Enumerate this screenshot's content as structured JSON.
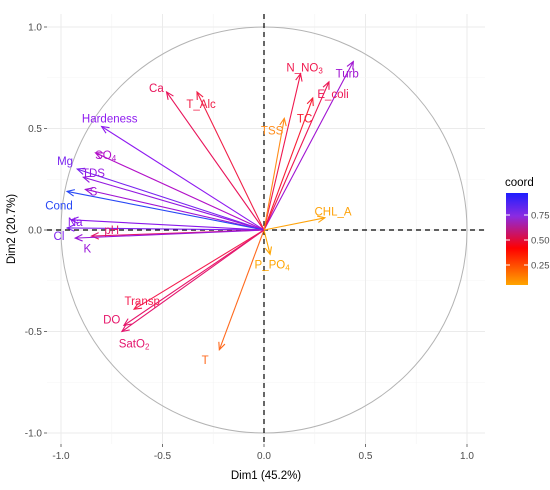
{
  "chart_data": {
    "type": "pca-correlation-circle",
    "xlabel": "Dim1 (45.2%)",
    "ylabel": "Dim2 (20.7%)",
    "xlim": [
      -1.05,
      1.05
    ],
    "ylim": [
      -1.05,
      1.05
    ],
    "x_ticks": [
      "-1.0",
      "-0.5",
      "0.0",
      "0.5",
      "1.0"
    ],
    "y_ticks": [
      "-1.0",
      "-0.5",
      "0.0",
      "0.5",
      "1.0"
    ],
    "grid": true,
    "unit_circle": true,
    "legend": {
      "title": "coord",
      "placement": "right",
      "ticks": [
        "0.75",
        "0.50",
        "0.25"
      ],
      "tick_values": [
        0.75,
        0.5,
        0.25
      ],
      "range": [
        0.05,
        0.97
      ],
      "colors": [
        "#FFA500",
        "#FF0000",
        "#8A2BE2",
        "#1E1EFF"
      ]
    },
    "variables": [
      {
        "name": "Ca",
        "label": [
          {
            "t": "Ca"
          }
        ],
        "x": -0.48,
        "y": 0.68,
        "coord": 0.69,
        "color": "#E8145A",
        "lx": -0.53,
        "ly": 0.7
      },
      {
        "name": "T_Alc",
        "label": [
          {
            "t": "T_Alc"
          }
        ],
        "x": -0.33,
        "y": 0.68,
        "coord": 0.57,
        "color": "#F02048",
        "lx": -0.31,
        "ly": 0.62
      },
      {
        "name": "Hardeness",
        "label": [
          {
            "t": "Hardeness"
          }
        ],
        "x": -0.8,
        "y": 0.51,
        "coord": 0.9,
        "color": "#8E1AF0",
        "lx": -0.76,
        "ly": 0.55
      },
      {
        "name": "SO4",
        "label": [
          {
            "t": "SO"
          },
          {
            "t": "4",
            "sub": true
          }
        ],
        "x": -0.83,
        "y": 0.38,
        "coord": 0.83,
        "color": "#B210C8",
        "lx": -0.78,
        "ly": 0.37
      },
      {
        "name": "Mg",
        "label": [
          {
            "t": "Mg"
          }
        ],
        "x": -0.92,
        "y": 0.3,
        "coord": 0.94,
        "color": "#7A24F0",
        "lx": -0.98,
        "ly": 0.34
      },
      {
        "name": "TDS",
        "label": [
          {
            "t": "TDS"
          }
        ],
        "x": -0.89,
        "y": 0.26,
        "coord": 0.86,
        "color": "#9418E0",
        "lx": -0.84,
        "ly": 0.28
      },
      {
        "name": "S",
        "label": [
          {
            "t": "S"
          }
        ],
        "x": -0.88,
        "y": 0.2,
        "coord": 0.81,
        "color": "#A014D2",
        "lx": -0.84,
        "ly": 0.19
      },
      {
        "name": "Cond",
        "label": [
          {
            "t": "Cond"
          }
        ],
        "x": -0.97,
        "y": 0.19,
        "coord": 0.98,
        "color": "#2848F5",
        "lx": -1.01,
        "ly": 0.12
      },
      {
        "name": "Na",
        "label": [
          {
            "t": "Na"
          }
        ],
        "x": -0.95,
        "y": 0.05,
        "coord": 0.9,
        "color": "#8A18EA",
        "lx": -0.93,
        "ly": 0.04
      },
      {
        "name": "Cl",
        "label": [
          {
            "t": "Cl"
          }
        ],
        "x": -0.97,
        "y": 0.01,
        "coord": 0.94,
        "color": "#7E22EE",
        "lx": -1.01,
        "ly": -0.03
      },
      {
        "name": "pH",
        "label": [
          {
            "t": "pH"
          }
        ],
        "x": -0.85,
        "y": -0.03,
        "coord": 0.72,
        "color": "#E0186A",
        "lx": -0.75,
        "ly": -0.0
      },
      {
        "name": "K",
        "label": [
          {
            "t": "K"
          }
        ],
        "x": -0.93,
        "y": -0.04,
        "coord": 0.87,
        "color": "#9A16DA",
        "lx": -0.87,
        "ly": -0.09
      },
      {
        "name": "N_NO3",
        "label": [
          {
            "t": "N_NO"
          },
          {
            "t": "3",
            "sub": true
          }
        ],
        "x": 0.18,
        "y": 0.77,
        "coord": 0.63,
        "color": "#F0184E",
        "lx": 0.2,
        "ly": 0.8
      },
      {
        "name": "Turb",
        "label": [
          {
            "t": "Turb"
          }
        ],
        "x": 0.44,
        "y": 0.83,
        "coord": 0.88,
        "color": "#A014D2",
        "lx": 0.41,
        "ly": 0.77
      },
      {
        "name": "E_coli",
        "label": [
          {
            "t": "E_coli"
          }
        ],
        "x": 0.32,
        "y": 0.73,
        "coord": 0.64,
        "color": "#EC1654",
        "lx": 0.34,
        "ly": 0.67
      },
      {
        "name": "TC",
        "label": [
          {
            "t": "TC"
          }
        ],
        "x": 0.24,
        "y": 0.65,
        "coord": 0.48,
        "color": "#F81E34",
        "lx": 0.2,
        "ly": 0.55
      },
      {
        "name": "TSS",
        "label": [
          {
            "t": "TSS"
          }
        ],
        "x": 0.1,
        "y": 0.55,
        "coord": 0.31,
        "color": "#FF8C1A",
        "lx": 0.04,
        "ly": 0.49
      },
      {
        "name": "CHL_A",
        "label": [
          {
            "t": "CHL_A"
          }
        ],
        "x": 0.3,
        "y": 0.06,
        "coord": 0.09,
        "color": "#FFA30A",
        "lx": 0.34,
        "ly": 0.09
      },
      {
        "name": "P_PO4",
        "label": [
          {
            "t": "P_PO"
          },
          {
            "t": "4",
            "sub": true
          }
        ],
        "x": 0.03,
        "y": -0.12,
        "coord": 0.02,
        "color": "#FFA500",
        "lx": 0.04,
        "ly": -0.17
      },
      {
        "name": "T",
        "label": [
          {
            "t": "T"
          }
        ],
        "x": -0.22,
        "y": -0.59,
        "coord": 0.4,
        "color": "#FF6A1E",
        "lx": -0.29,
        "ly": -0.64
      },
      {
        "name": "Transp",
        "label": [
          {
            "t": "Transp"
          }
        ],
        "x": -0.64,
        "y": -0.39,
        "coord": 0.56,
        "color": "#F41E50",
        "lx": -0.6,
        "ly": -0.35
      },
      {
        "name": "DO",
        "label": [
          {
            "t": "DO"
          }
        ],
        "x": -0.69,
        "y": -0.47,
        "coord": 0.7,
        "color": "#E6166A",
        "lx": -0.75,
        "ly": -0.44
      },
      {
        "name": "SatO2",
        "label": [
          {
            "t": "SatO"
          },
          {
            "t": "2",
            "sub": true
          }
        ],
        "x": -0.7,
        "y": -0.5,
        "coord": 0.74,
        "color": "#E4166E",
        "lx": -0.64,
        "ly": -0.56
      }
    ]
  }
}
